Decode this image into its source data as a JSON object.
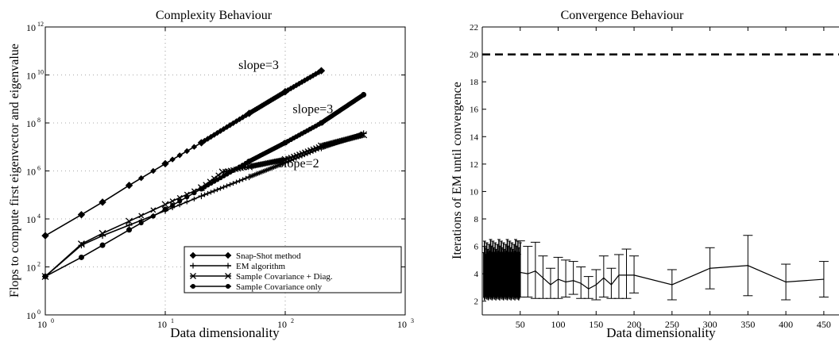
{
  "colors": {
    "ink": "#000000",
    "background": "#ffffff"
  },
  "chart_data": [
    {
      "type": "line",
      "title": "Complexity Behaviour",
      "xlabel": "Data dimensionality",
      "ylabel": "Flops to compute first eigenvector and eigenvalue",
      "xscale": "log",
      "yscale": "log",
      "xlim": [
        1,
        1000
      ],
      "ylim": [
        1,
        1000000000000
      ],
      "xticks": [
        {
          "value": 1,
          "base": "10",
          "exp": "0"
        },
        {
          "value": 10,
          "base": "10",
          "exp": "1"
        },
        {
          "value": 100,
          "base": "10",
          "exp": "2"
        },
        {
          "value": 1000,
          "base": "10",
          "exp": "3"
        }
      ],
      "yticks": [
        {
          "value": 1,
          "base": "10",
          "exp": "0"
        },
        {
          "value": 100,
          "base": "10",
          "exp": "2"
        },
        {
          "value": 10000,
          "base": "10",
          "exp": "4"
        },
        {
          "value": 1000000,
          "base": "10",
          "exp": "6"
        },
        {
          "value": 100000000,
          "base": "10",
          "exp": "8"
        },
        {
          "value": 10000000000,
          "base": "10",
          "exp": "10"
        },
        {
          "value": 1000000000000,
          "base": "10",
          "exp": "12"
        }
      ],
      "grid": "dotted",
      "legend_position": "bottom-right",
      "annotations": [
        {
          "text": "slope=3",
          "x": 60,
          "y": 18000000000
        },
        {
          "text": "slope=3",
          "x": 170,
          "y": 260000000
        },
        {
          "text": "slope=2",
          "x": 130,
          "y": 1400000
        }
      ],
      "series": [
        {
          "name": "Snap-Shot method",
          "marker": "diamond",
          "line": "solid",
          "x": [
            1,
            2,
            3,
            5,
            10,
            20,
            50,
            100,
            200
          ],
          "y": [
            2000,
            15000,
            50000,
            250000,
            2000000,
            15000000,
            250000000,
            2000000000,
            15000000000
          ]
        },
        {
          "name": "EM algorithm",
          "marker": "plus",
          "line": "solid",
          "x": [
            1,
            2,
            3,
            5,
            10,
            20,
            50,
            100,
            200,
            450
          ],
          "y": [
            40,
            800,
            2000,
            5500,
            22000,
            90000,
            560000,
            2200000,
            9000000,
            36000000
          ]
        },
        {
          "name": "Sample Covariance + Diag.",
          "marker": "x",
          "line": "solid",
          "x": [
            1,
            2,
            3,
            5,
            10,
            20,
            30,
            50,
            100,
            200,
            450
          ],
          "y": [
            40,
            900,
            2500,
            8000,
            40000,
            200000,
            900000,
            1500000,
            3000000,
            11000000,
            32000000
          ]
        },
        {
          "name": "Sample Covariance only",
          "marker": "circle",
          "line": "solid",
          "x": [
            1,
            2,
            3,
            5,
            10,
            20,
            50,
            100,
            200,
            450
          ],
          "y": [
            40,
            250,
            800,
            3500,
            25000,
            180000,
            2500000,
            15000000,
            100000000,
            1500000000
          ]
        }
      ]
    },
    {
      "type": "line",
      "title": "Convergence Behaviour",
      "xlabel": "Data dimensionality",
      "ylabel": "Iterations of EM until convergence",
      "xlim": [
        0,
        470
      ],
      "ylim": [
        1,
        22
      ],
      "xticks": [
        50,
        100,
        150,
        200,
        250,
        300,
        350,
        400,
        450
      ],
      "yticks": [
        2,
        4,
        6,
        8,
        10,
        12,
        14,
        16,
        18,
        20,
        22
      ],
      "reference_line": {
        "y": 20,
        "style": "dashed"
      },
      "dense_region": {
        "x_from": 2,
        "x_to": 50,
        "y_low": 2.3,
        "y_high": 6.5
      },
      "series": [
        {
          "x": [
            50,
            60,
            70,
            80,
            90,
            100,
            110,
            120,
            130,
            140,
            150,
            160,
            170,
            180,
            190,
            200,
            250,
            300,
            350,
            400,
            450
          ],
          "y": [
            4.1,
            4.0,
            4.2,
            3.7,
            3.2,
            3.6,
            3.4,
            3.5,
            3.3,
            2.9,
            3.2,
            3.7,
            3.2,
            3.9,
            3.9,
            3.9,
            3.2,
            4.4,
            4.6,
            3.4,
            3.6
          ],
          "y_low": [
            2.3,
            2.3,
            2.2,
            2.2,
            2.2,
            2.2,
            2.3,
            2.5,
            2.2,
            2.2,
            2.1,
            2.3,
            2.2,
            2.2,
            2.2,
            2.6,
            2.1,
            2.9,
            2.4,
            2.1,
            2.3
          ],
          "y_high": [
            6.4,
            6.0,
            6.3,
            5.3,
            4.4,
            5.2,
            5.0,
            4.9,
            4.5,
            3.8,
            4.3,
            5.3,
            4.4,
            5.4,
            5.8,
            5.3,
            4.3,
            5.9,
            6.8,
            4.7,
            4.9
          ]
        }
      ]
    }
  ]
}
